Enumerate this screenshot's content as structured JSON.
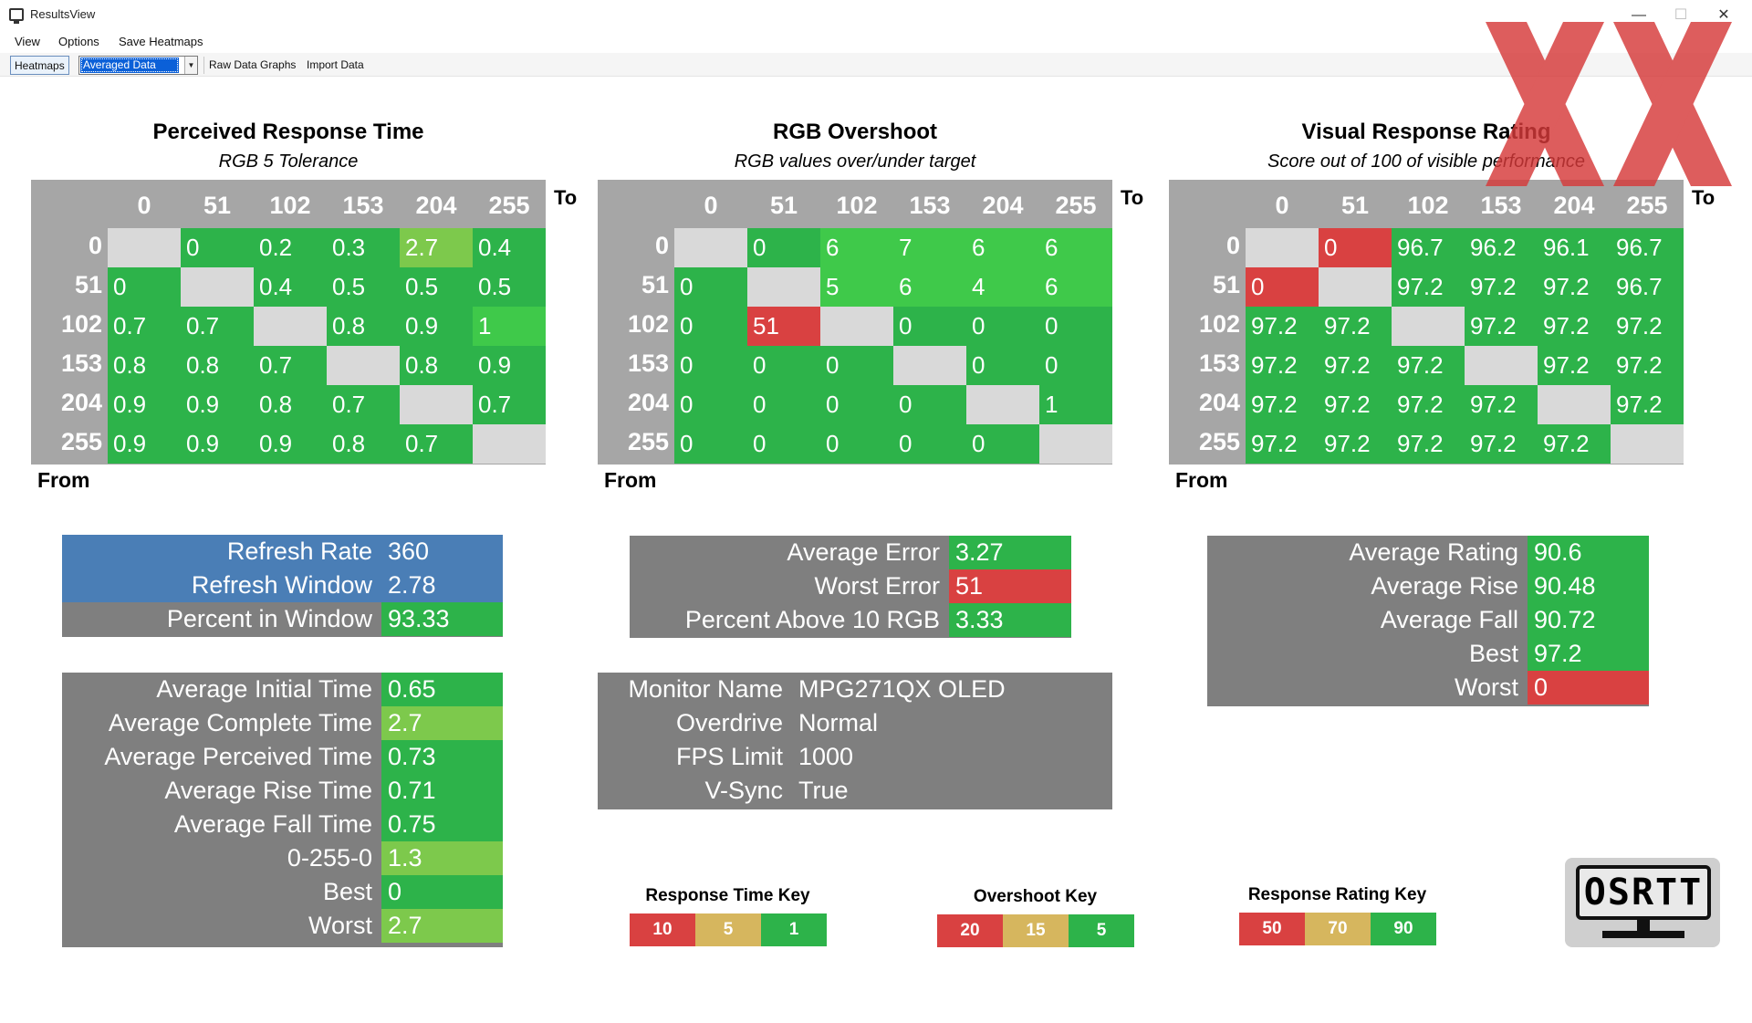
{
  "window": {
    "title": "ResultsView",
    "minimize": "—",
    "maximize": "☐",
    "close": "✕"
  },
  "menu": [
    "View",
    "Options",
    "Save Heatmaps"
  ],
  "toolbar": {
    "heatmaps": "Heatmaps",
    "view_mode": "Averaged Data",
    "raw_graphs": "Raw Data Graphs",
    "import": "Import Data"
  },
  "axis": {
    "to": "To",
    "from": "From"
  },
  "colors": {
    "green": "#2db34a",
    "light_green": "#7dc94c",
    "bright_green": "#3fc94a",
    "red": "#d94141",
    "yellow": "#d6b65e",
    "gray": "#a6a6a6",
    "empty": "#d9d9d9",
    "blue": "#4a7eb6",
    "dark_gray": "#7f7f7f"
  },
  "heatmaps": [
    {
      "id": "prt",
      "title": "Perceived Response Time",
      "subtitle": "RGB 5 Tolerance",
      "levels": [
        "0",
        "51",
        "102",
        "153",
        "204",
        "255"
      ],
      "values": [
        [
          null,
          "0",
          "0.2",
          "0.3",
          "2.7",
          "0.4"
        ],
        [
          "0",
          null,
          "0.4",
          "0.5",
          "0.5",
          "0.5"
        ],
        [
          "0.7",
          "0.7",
          null,
          "0.8",
          "0.9",
          "1"
        ],
        [
          "0.8",
          "0.8",
          "0.7",
          null,
          "0.8",
          "0.9"
        ],
        [
          "0.9",
          "0.9",
          "0.8",
          "0.7",
          null,
          "0.7"
        ],
        [
          "0.9",
          "0.9",
          "0.9",
          "0.8",
          "0.7",
          null
        ]
      ],
      "tones": [
        [
          "e",
          "g",
          "g",
          "g",
          "l",
          "g"
        ],
        [
          "g",
          "e",
          "g",
          "g",
          "g",
          "g"
        ],
        [
          "g",
          "g",
          "e",
          "g",
          "g",
          "b"
        ],
        [
          "g",
          "g",
          "g",
          "e",
          "g",
          "g"
        ],
        [
          "g",
          "g",
          "g",
          "g",
          "e",
          "g"
        ],
        [
          "g",
          "g",
          "g",
          "g",
          "g",
          "e"
        ]
      ]
    },
    {
      "id": "ovs",
      "title": "RGB Overshoot",
      "subtitle": "RGB values over/under target",
      "levels": [
        "0",
        "51",
        "102",
        "153",
        "204",
        "255"
      ],
      "values": [
        [
          null,
          "0",
          "6",
          "7",
          "6",
          "6"
        ],
        [
          "0",
          null,
          "5",
          "6",
          "4",
          "6"
        ],
        [
          "0",
          "51",
          null,
          "0",
          "0",
          "0"
        ],
        [
          "0",
          "0",
          "0",
          null,
          "0",
          "0"
        ],
        [
          "0",
          "0",
          "0",
          "0",
          null,
          "1"
        ],
        [
          "0",
          "0",
          "0",
          "0",
          "0",
          null
        ]
      ],
      "tones": [
        [
          "e",
          "g",
          "b",
          "b",
          "b",
          "b"
        ],
        [
          "g",
          "e",
          "b",
          "b",
          "b",
          "b"
        ],
        [
          "g",
          "r",
          "e",
          "g",
          "g",
          "g"
        ],
        [
          "g",
          "g",
          "g",
          "e",
          "g",
          "g"
        ],
        [
          "g",
          "g",
          "g",
          "g",
          "e",
          "g"
        ],
        [
          "g",
          "g",
          "g",
          "g",
          "g",
          "e"
        ]
      ]
    },
    {
      "id": "vrr",
      "title": "Visual Response Rating",
      "subtitle": "Score out of 100 of visible performance",
      "levels": [
        "0",
        "51",
        "102",
        "153",
        "204",
        "255"
      ],
      "values": [
        [
          null,
          "0",
          "96.7",
          "96.2",
          "96.1",
          "96.7"
        ],
        [
          "0",
          null,
          "97.2",
          "97.2",
          "97.2",
          "96.7"
        ],
        [
          "97.2",
          "97.2",
          null,
          "97.2",
          "97.2",
          "97.2"
        ],
        [
          "97.2",
          "97.2",
          "97.2",
          null,
          "97.2",
          "97.2"
        ],
        [
          "97.2",
          "97.2",
          "97.2",
          "97.2",
          null,
          "97.2"
        ],
        [
          "97.2",
          "97.2",
          "97.2",
          "97.2",
          "97.2",
          null
        ]
      ],
      "tones": [
        [
          "e",
          "r",
          "g",
          "g",
          "g",
          "g"
        ],
        [
          "r",
          "e",
          "g",
          "g",
          "g",
          "g"
        ],
        [
          "g",
          "g",
          "e",
          "g",
          "g",
          "g"
        ],
        [
          "g",
          "g",
          "g",
          "e",
          "g",
          "g"
        ],
        [
          "g",
          "g",
          "g",
          "g",
          "e",
          "g"
        ],
        [
          "g",
          "g",
          "g",
          "g",
          "g",
          "e"
        ]
      ]
    }
  ],
  "refresh": [
    {
      "label": "Refresh Rate",
      "value": "360",
      "tone": "blue"
    },
    {
      "label": "Refresh Window",
      "value": "2.78",
      "tone": "blue"
    },
    {
      "label": "Percent in Window",
      "value": "93.33",
      "tone": "g"
    }
  ],
  "timing": [
    {
      "label": "Average Initial Time",
      "value": "0.65",
      "tone": "g"
    },
    {
      "label": "Average Complete Time",
      "value": "2.7",
      "tone": "l"
    },
    {
      "label": "Average Perceived Time",
      "value": "0.73",
      "tone": "g"
    },
    {
      "label": "Average Rise Time",
      "value": "0.71",
      "tone": "g"
    },
    {
      "label": "Average Fall Time",
      "value": "0.75",
      "tone": "g"
    },
    {
      "label": "0-255-0",
      "value": "1.3",
      "tone": "l"
    },
    {
      "label": "Best",
      "value": "0",
      "tone": "g"
    },
    {
      "label": "Worst",
      "value": "2.7",
      "tone": "l"
    }
  ],
  "overshoot_stats": [
    {
      "label": "Average Error",
      "value": "3.27",
      "tone": "g"
    },
    {
      "label": "Worst Error",
      "value": "51",
      "tone": "r"
    },
    {
      "label": "Percent Above 10 RGB",
      "value": "3.33",
      "tone": "g"
    }
  ],
  "monitor": [
    {
      "label": "Monitor Name",
      "value": "MPG271QX OLED"
    },
    {
      "label": "Overdrive",
      "value": "Normal"
    },
    {
      "label": "FPS Limit",
      "value": "1000"
    },
    {
      "label": "V-Sync",
      "value": "True"
    }
  ],
  "rating_stats": [
    {
      "label": "Average Rating",
      "value": "90.6",
      "tone": "g"
    },
    {
      "label": "Average Rise",
      "value": "90.48",
      "tone": "g"
    },
    {
      "label": "Average Fall",
      "value": "90.72",
      "tone": "g"
    },
    {
      "label": "Best",
      "value": "97.2",
      "tone": "g"
    },
    {
      "label": "Worst",
      "value": "0",
      "tone": "r"
    }
  ],
  "keys": [
    {
      "title": "Response Time Key",
      "cells": [
        {
          "v": "10",
          "tone": "r"
        },
        {
          "v": "5",
          "tone": "y"
        },
        {
          "v": "1",
          "tone": "g"
        }
      ]
    },
    {
      "title": "Overshoot Key",
      "cells": [
        {
          "v": "20",
          "tone": "r"
        },
        {
          "v": "15",
          "tone": "y"
        },
        {
          "v": "5",
          "tone": "g"
        }
      ]
    },
    {
      "title": "Response Rating Key",
      "cells": [
        {
          "v": "50",
          "tone": "r"
        },
        {
          "v": "70",
          "tone": "y"
        },
        {
          "v": "90",
          "tone": "g"
        }
      ]
    }
  ],
  "logo": {
    "text": "OSRTT"
  }
}
